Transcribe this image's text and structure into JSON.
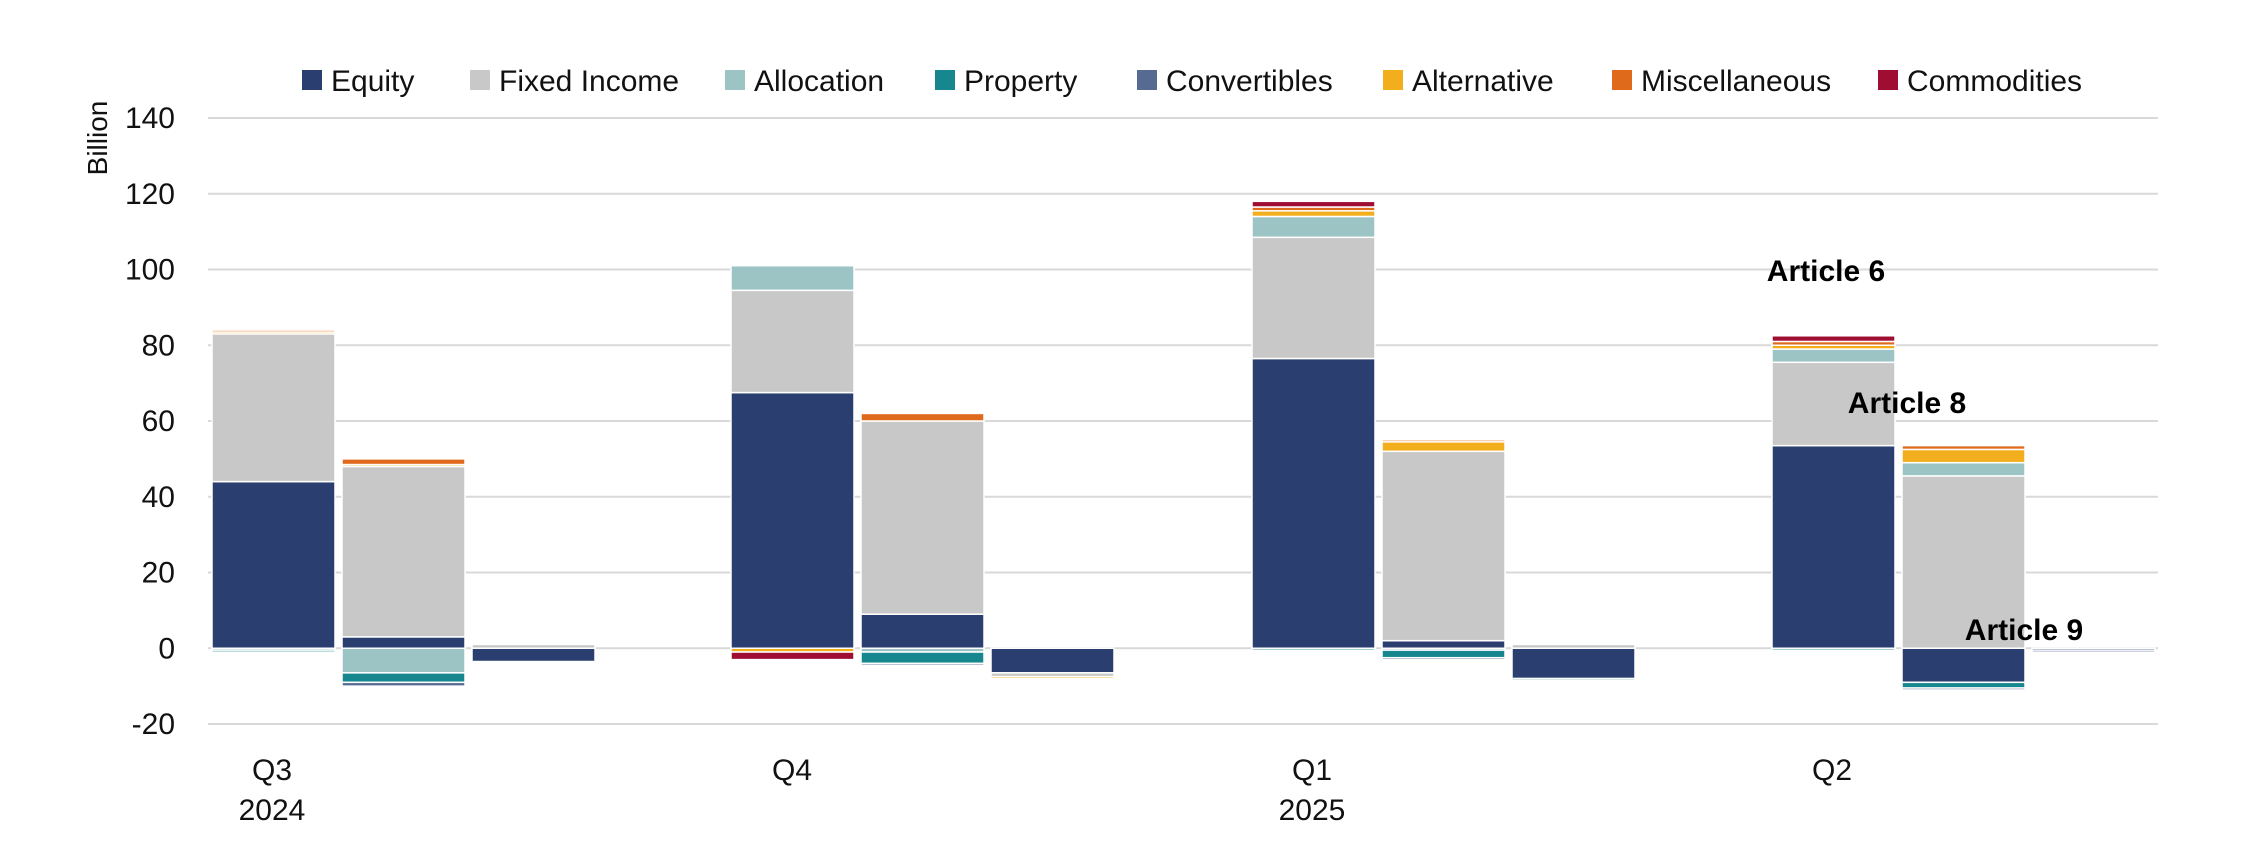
{
  "chart_data": {
    "type": "bar",
    "stacked": true,
    "title": "",
    "xlabel": "",
    "ylabel": "Billion",
    "ylim": [
      -20,
      140
    ],
    "yticks": [
      -20,
      0,
      20,
      40,
      60,
      80,
      100,
      120,
      140
    ],
    "grid": true,
    "legend_position": "top",
    "categories": [
      {
        "label": "Q3",
        "sublabel": "2024"
      },
      {
        "label": "Q4",
        "sublabel": ""
      },
      {
        "label": "Q1",
        "sublabel": "2025"
      },
      {
        "label": "Q2",
        "sublabel": ""
      }
    ],
    "groups": [
      "Article 6",
      "Article 8",
      "Article 9"
    ],
    "annotations": [
      {
        "text": "Article 6",
        "category": 3,
        "group": 0
      },
      {
        "text": "Article 8",
        "category": 3,
        "group": 1
      },
      {
        "text": "Article 9",
        "category": 3,
        "group": 2
      }
    ],
    "series": [
      {
        "name": "Equity",
        "color": "#2a3f6f",
        "values": [
          [
            44,
            3,
            -3.5
          ],
          [
            67.5,
            9,
            -6.5
          ],
          [
            76.5,
            2,
            -8
          ],
          [
            53.5,
            -9,
            -0.5
          ]
        ]
      },
      {
        "name": "Fixed Income",
        "color": "#c8c8c8",
        "values": [
          [
            39,
            45,
            1
          ],
          [
            27,
            51,
            -1
          ],
          [
            32,
            50,
            1
          ],
          [
            22,
            45.5,
            0
          ]
        ]
      },
      {
        "name": "Allocation",
        "color": "#9cc4c4",
        "values": [
          [
            -0.5,
            -6.5,
            0
          ],
          [
            6.5,
            -1,
            0
          ],
          [
            5.5,
            -0.5,
            -0.5
          ],
          [
            3.5,
            3.5,
            0
          ]
        ]
      },
      {
        "name": "Property",
        "color": "#16868f",
        "values": [
          [
            -0.5,
            -2.5,
            0
          ],
          [
            0,
            -3,
            0
          ],
          [
            -0.5,
            -2,
            0
          ],
          [
            -0.5,
            -1.5,
            0
          ]
        ]
      },
      {
        "name": "Convertibles",
        "color": "#566a92",
        "values": [
          [
            0,
            -1,
            0
          ],
          [
            0,
            -0.5,
            0
          ],
          [
            0,
            -0.5,
            0
          ],
          [
            0,
            -0.5,
            -0.5
          ]
        ]
      },
      {
        "name": "Alternative",
        "color": "#f2ae1c",
        "values": [
          [
            0.5,
            0.5,
            0
          ],
          [
            -1,
            0,
            -0.5
          ],
          [
            1.5,
            2.5,
            0
          ],
          [
            1,
            3.5,
            0
          ]
        ]
      },
      {
        "name": "Miscellaneous",
        "color": "#e06a1c",
        "values": [
          [
            0.5,
            1.5,
            0
          ],
          [
            0,
            2,
            0
          ],
          [
            1,
            0.5,
            0
          ],
          [
            1,
            1,
            0
          ]
        ]
      },
      {
        "name": "Commodities",
        "color": "#a00d33",
        "values": [
          [
            0,
            0,
            0
          ],
          [
            -2,
            0,
            0
          ],
          [
            1.5,
            0,
            0
          ],
          [
            1.5,
            0,
            0
          ]
        ]
      }
    ]
  }
}
